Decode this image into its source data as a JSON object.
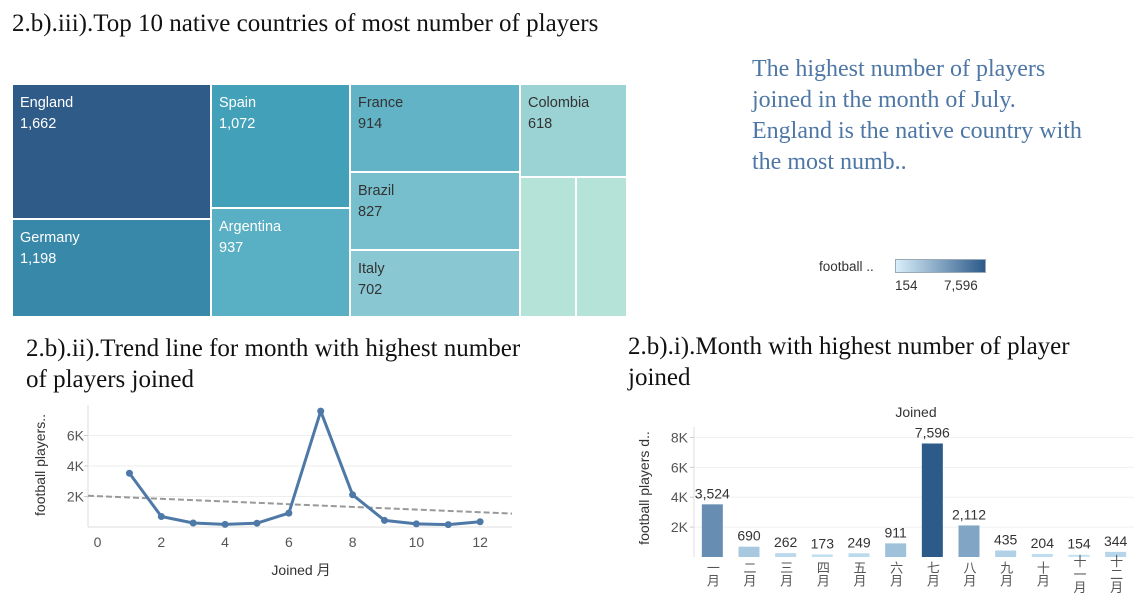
{
  "titles": {
    "treemap": "2.b).iii).Top 10 native countries of most number of players",
    "line": "2.b).ii).Trend line for month with highest number of players joined",
    "bar": "2.b).i).Month with highest number of player joined"
  },
  "insight": "The highest number of players joined in the month of July. England is the native country with the most numb..",
  "legend": {
    "label": "football ..",
    "min": "154",
    "max": "7,596",
    "color_low": "#d9eefa",
    "color_high": "#2c5a89"
  },
  "chart_data": [
    {
      "type": "treemap",
      "title": "2.b).iii).Top 10 native countries of most number of players",
      "items": [
        {
          "name": "England",
          "value": 1662,
          "label": "1,662",
          "color": "#2f5b88"
        },
        {
          "name": "Germany",
          "value": 1198,
          "label": "1,198",
          "color": "#3888a9"
        },
        {
          "name": "Spain",
          "value": 1072,
          "label": "1,072",
          "color": "#42a0b9"
        },
        {
          "name": "Argentina",
          "value": 937,
          "label": "937",
          "color": "#59afc3"
        },
        {
          "name": "France",
          "value": 914,
          "label": "914",
          "color": "#62b3c5"
        },
        {
          "name": "Brazil",
          "value": 827,
          "label": "827",
          "color": "#78bfce"
        },
        {
          "name": "Italy",
          "value": 702,
          "label": "702",
          "color": "#89c7d2"
        },
        {
          "name": "Colombia",
          "value": 618,
          "label": "618",
          "color": "#9bd2d4"
        },
        {
          "name": "",
          "value": null,
          "label": "",
          "color": "#b5e3d8"
        },
        {
          "name": "",
          "value": null,
          "label": "",
          "color": "#b5e3d8"
        }
      ]
    },
    {
      "type": "line",
      "title": "2.b).ii).Trend line for month with highest number of players joined",
      "xlabel": "Joined 月",
      "ylabel": "football players..",
      "x": [
        1,
        2,
        3,
        4,
        5,
        6,
        7,
        8,
        9,
        10,
        11,
        12
      ],
      "y": [
        3524,
        690,
        262,
        173,
        249,
        911,
        7596,
        2112,
        435,
        204,
        154,
        344
      ],
      "xticks": [
        "0",
        "2",
        "4",
        "6",
        "8",
        "10",
        "12"
      ],
      "yticks": [
        "2K",
        "4K",
        "6K"
      ],
      "xlim": [
        -0.3,
        13
      ],
      "ylim": [
        0,
        8000
      ],
      "trend_line": {
        "start": [
          -0.3,
          2050
        ],
        "end": [
          13,
          880
        ]
      },
      "line_color": "#4e79a7",
      "trend_color": "#999999"
    },
    {
      "type": "bar",
      "title": "2.b).i).Month with highest number of player joined",
      "header": "Joined",
      "ylabel": "football players d..",
      "categories": [
        "一月",
        "二月",
        "三月",
        "四月",
        "五月",
        "六月",
        "七月",
        "八月",
        "九月",
        "十月",
        "十一月",
        "十二月"
      ],
      "values": [
        3524,
        690,
        262,
        173,
        249,
        911,
        7596,
        2112,
        435,
        204,
        154,
        344
      ],
      "value_labels": [
        "3,524",
        "690",
        "262",
        "173",
        "249",
        "911",
        "7,596",
        "2,112",
        "435",
        "204",
        "154",
        "344"
      ],
      "yticks": [
        "2K",
        "4K",
        "6K",
        "8K"
      ],
      "ylim": [
        0,
        8700
      ],
      "color_low": "#c7e4f5",
      "color_high": "#2c5a89"
    }
  ]
}
